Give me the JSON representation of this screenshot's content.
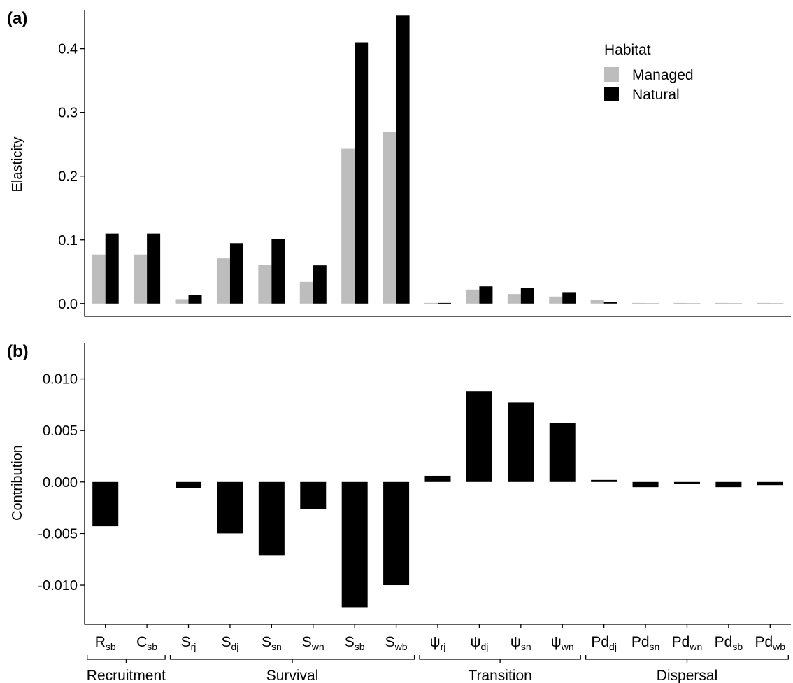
{
  "chart_data": [
    {
      "panel": "(a)",
      "type": "bar",
      "ylabel": "Elasticity",
      "ylim": [
        -0.02,
        0.46
      ],
      "yticks": [
        0.0,
        0.1,
        0.2,
        0.3,
        0.4
      ],
      "ytick_labels": [
        "0.0",
        "0.1",
        "0.2",
        "0.3",
        "0.4"
      ],
      "legend": {
        "title": "Habitat",
        "placement": "top-right"
      },
      "series": [
        {
          "name": "Managed",
          "color": "#bdbdbd",
          "values": [
            0.077,
            0.077,
            0.007,
            0.071,
            0.061,
            0.034,
            0.243,
            0.27,
            0.001,
            0.022,
            0.015,
            0.011,
            0.006,
            0.001,
            0.001,
            0.001,
            0.001
          ]
        },
        {
          "name": "Natural",
          "color": "#000000",
          "values": [
            0.11,
            0.11,
            0.014,
            0.095,
            0.101,
            0.06,
            0.41,
            0.452,
            0.001,
            0.027,
            0.025,
            0.018,
            0.002,
            -0.001,
            -0.001,
            -0.001,
            -0.001
          ]
        }
      ]
    },
    {
      "panel": "(b)",
      "type": "bar",
      "ylabel": "Contribution",
      "ylim": [
        -0.0138,
        0.0135
      ],
      "yticks": [
        0.01,
        0.005,
        0.0,
        -0.005,
        -0.01
      ],
      "ytick_labels": [
        "0.010",
        "0.005",
        "0.000",
        "-0.005",
        "-0.010"
      ],
      "series": [
        {
          "color": "#000000",
          "values": [
            -0.0043,
            0.0,
            -0.0006,
            -0.005,
            -0.0071,
            -0.0026,
            -0.0122,
            -0.01,
            0.0006,
            0.0088,
            0.0077,
            0.0057,
            0.0002,
            -0.0005,
            -0.0002,
            -0.0005,
            -0.0003
          ]
        }
      ]
    }
  ],
  "categories": [
    {
      "base": "R",
      "sub": "sb"
    },
    {
      "base": "C",
      "sub": "sb"
    },
    {
      "base": "S",
      "sub": "rj"
    },
    {
      "base": "S",
      "sub": "dj"
    },
    {
      "base": "S",
      "sub": "sn"
    },
    {
      "base": "S",
      "sub": "wn"
    },
    {
      "base": "S",
      "sub": "sb"
    },
    {
      "base": "S",
      "sub": "wb"
    },
    {
      "base": "ψ",
      "sub": "rj"
    },
    {
      "base": "ψ",
      "sub": "dj"
    },
    {
      "base": "ψ",
      "sub": "sn"
    },
    {
      "base": "ψ",
      "sub": "wn"
    },
    {
      "base": "Pd",
      "sub": "dj"
    },
    {
      "base": "Pd",
      "sub": "sn"
    },
    {
      "base": "Pd",
      "sub": "wn"
    },
    {
      "base": "Pd",
      "sub": "sb"
    },
    {
      "base": "Pd",
      "sub": "wb"
    }
  ],
  "groups": [
    {
      "label": "Recruitment",
      "from": 0,
      "to": 1
    },
    {
      "label": "Survival",
      "from": 2,
      "to": 7
    },
    {
      "label": "Transition",
      "from": 8,
      "to": 11
    },
    {
      "label": "Dispersal",
      "from": 12,
      "to": 16
    }
  ]
}
